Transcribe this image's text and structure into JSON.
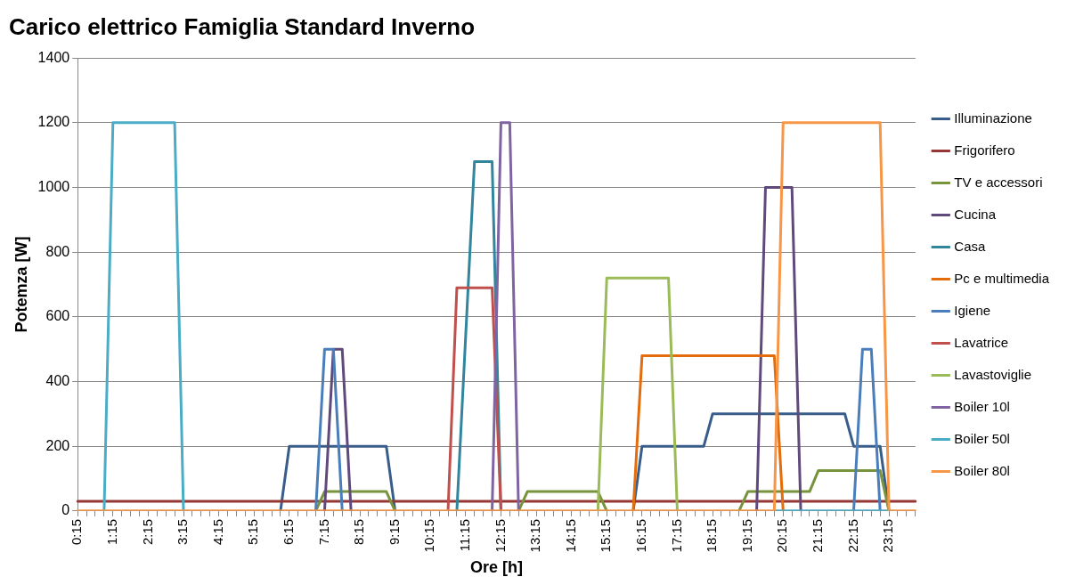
{
  "chart_data": {
    "type": "line",
    "title": "Carico elettrico Famiglia Standard Inverno",
    "xlabel": "Ore [h]",
    "ylabel": "Potemza [W]",
    "categories": [
      "0:15",
      null,
      null,
      null,
      "1:15",
      null,
      null,
      null,
      "2:15",
      null,
      null,
      null,
      "3:15",
      null,
      null,
      null,
      "4:15",
      null,
      null,
      null,
      "5:15",
      null,
      null,
      null,
      "6:15",
      null,
      null,
      null,
      "7:15",
      null,
      null,
      null,
      "8:15",
      null,
      null,
      null,
      "9:15",
      null,
      null,
      null,
      "10:15",
      null,
      null,
      null,
      "11:15",
      null,
      null,
      null,
      "12:15",
      null,
      null,
      null,
      "13:15",
      null,
      null,
      null,
      "14:15",
      null,
      null,
      null,
      "15:15",
      null,
      null,
      null,
      "16:15",
      null,
      null,
      null,
      "17:15",
      null,
      null,
      null,
      "18:15",
      null,
      null,
      null,
      "19:15",
      null,
      null,
      null,
      "20:15",
      null,
      null,
      null,
      "21:15",
      null,
      null,
      null,
      "22:15",
      null,
      null,
      null,
      "23:15",
      null,
      null,
      null
    ],
    "series": [
      {
        "name": "Illuminazione",
        "color": "#385d8a",
        "values": [
          null,
          null,
          null,
          null,
          null,
          null,
          null,
          null,
          null,
          null,
          null,
          null,
          null,
          null,
          null,
          null,
          null,
          null,
          null,
          null,
          null,
          null,
          null,
          0,
          200,
          200,
          200,
          200,
          200,
          200,
          200,
          200,
          200,
          200,
          200,
          200,
          0,
          null,
          null,
          null,
          null,
          null,
          null,
          null,
          null,
          null,
          null,
          null,
          null,
          null,
          null,
          null,
          null,
          null,
          null,
          null,
          null,
          null,
          null,
          null,
          null,
          null,
          null,
          0,
          200,
          200,
          200,
          200,
          200,
          200,
          200,
          200,
          300,
          300,
          300,
          300,
          300,
          300,
          300,
          300,
          300,
          300,
          300,
          300,
          300,
          300,
          300,
          300,
          200,
          200,
          200,
          200,
          0,
          null,
          null,
          null
        ]
      },
      {
        "name": "Frigorifero",
        "color": "#953735",
        "values": [
          30,
          30,
          30,
          30,
          30,
          30,
          30,
          30,
          30,
          30,
          30,
          30,
          30,
          30,
          30,
          30,
          30,
          30,
          30,
          30,
          30,
          30,
          30,
          30,
          30,
          30,
          30,
          30,
          30,
          30,
          30,
          30,
          30,
          30,
          30,
          30,
          30,
          30,
          30,
          30,
          30,
          30,
          30,
          30,
          30,
          30,
          30,
          30,
          30,
          30,
          30,
          30,
          30,
          30,
          30,
          30,
          30,
          30,
          30,
          30,
          30,
          30,
          30,
          30,
          30,
          30,
          30,
          30,
          30,
          30,
          30,
          30,
          30,
          30,
          30,
          30,
          30,
          30,
          30,
          30,
          30,
          30,
          30,
          30,
          30,
          30,
          30,
          30,
          30,
          30,
          30,
          30,
          30,
          30,
          30,
          30
        ]
      },
      {
        "name": "TV e accessori",
        "color": "#77933c",
        "values": [
          null,
          null,
          null,
          null,
          null,
          null,
          null,
          null,
          null,
          null,
          null,
          null,
          null,
          null,
          null,
          null,
          null,
          null,
          null,
          null,
          null,
          null,
          null,
          null,
          null,
          null,
          null,
          0,
          60,
          60,
          60,
          60,
          60,
          60,
          60,
          60,
          0,
          null,
          null,
          null,
          null,
          null,
          null,
          null,
          null,
          null,
          null,
          null,
          null,
          null,
          0,
          60,
          60,
          60,
          60,
          60,
          60,
          60,
          60,
          60,
          0,
          null,
          null,
          null,
          null,
          null,
          null,
          null,
          null,
          null,
          null,
          null,
          null,
          null,
          null,
          0,
          60,
          60,
          60,
          60,
          60,
          60,
          60,
          60,
          125,
          125,
          125,
          125,
          125,
          125,
          125,
          125,
          0,
          null,
          null,
          null
        ]
      },
      {
        "name": "Cucina",
        "color": "#604a7b",
        "values": [
          null,
          null,
          null,
          null,
          null,
          null,
          null,
          null,
          null,
          null,
          null,
          null,
          null,
          null,
          null,
          null,
          null,
          null,
          null,
          null,
          null,
          null,
          null,
          null,
          null,
          null,
          null,
          null,
          0,
          500,
          500,
          0,
          null,
          null,
          null,
          null,
          null,
          null,
          null,
          null,
          null,
          null,
          null,
          null,
          null,
          null,
          null,
          null,
          null,
          null,
          null,
          null,
          null,
          null,
          null,
          null,
          null,
          null,
          null,
          null,
          null,
          null,
          null,
          null,
          null,
          null,
          null,
          null,
          null,
          null,
          null,
          null,
          null,
          null,
          null,
          null,
          null,
          0,
          1000,
          1000,
          1000,
          1000,
          0,
          null,
          null,
          null,
          null,
          null,
          null,
          null,
          null,
          null,
          null,
          null,
          null,
          null
        ]
      },
      {
        "name": "Casa",
        "color": "#31859c",
        "values": [
          null,
          null,
          null,
          null,
          null,
          null,
          null,
          null,
          null,
          null,
          null,
          null,
          null,
          null,
          null,
          null,
          null,
          null,
          null,
          null,
          null,
          null,
          null,
          null,
          null,
          null,
          null,
          null,
          null,
          null,
          null,
          null,
          null,
          null,
          null,
          null,
          null,
          null,
          null,
          null,
          null,
          null,
          null,
          0,
          540,
          1080,
          1080,
          1080,
          0,
          null,
          null,
          null,
          null,
          null,
          null,
          null,
          null,
          null,
          null,
          null,
          null,
          null,
          null,
          null,
          null,
          null,
          null,
          null,
          null,
          null,
          null,
          null,
          null,
          null,
          null,
          null,
          null,
          null,
          null,
          null,
          null,
          null,
          null,
          null,
          null,
          null,
          null,
          null,
          null,
          null,
          null,
          null,
          null,
          null,
          null,
          null
        ]
      },
      {
        "name": "Pc e multimedia",
        "color": "#e46c0a",
        "values": [
          null,
          null,
          null,
          null,
          null,
          null,
          null,
          null,
          null,
          null,
          null,
          null,
          null,
          null,
          null,
          null,
          null,
          null,
          null,
          null,
          null,
          null,
          null,
          null,
          null,
          null,
          null,
          null,
          null,
          null,
          null,
          null,
          null,
          null,
          null,
          null,
          null,
          null,
          null,
          null,
          null,
          null,
          null,
          null,
          null,
          null,
          null,
          null,
          null,
          null,
          null,
          null,
          null,
          null,
          null,
          null,
          null,
          null,
          null,
          null,
          null,
          null,
          null,
          0,
          480,
          480,
          480,
          480,
          480,
          480,
          480,
          480,
          480,
          480,
          480,
          480,
          480,
          480,
          480,
          480,
          0,
          null,
          null,
          null,
          null,
          null,
          null,
          null,
          null,
          null,
          null,
          null,
          null,
          null,
          null,
          null
        ]
      },
      {
        "name": "Igiene",
        "color": "#4a7ebb",
        "values": [
          null,
          null,
          null,
          null,
          null,
          null,
          null,
          null,
          null,
          null,
          null,
          null,
          null,
          null,
          null,
          null,
          null,
          null,
          null,
          null,
          null,
          null,
          null,
          null,
          null,
          null,
          null,
          0,
          500,
          500,
          0,
          null,
          null,
          null,
          null,
          null,
          null,
          null,
          null,
          null,
          null,
          null,
          null,
          null,
          null,
          null,
          null,
          null,
          null,
          null,
          null,
          null,
          null,
          null,
          null,
          null,
          null,
          null,
          null,
          null,
          null,
          null,
          null,
          null,
          null,
          null,
          null,
          null,
          null,
          null,
          null,
          null,
          null,
          null,
          null,
          null,
          null,
          null,
          null,
          null,
          null,
          null,
          null,
          null,
          null,
          null,
          null,
          null,
          0,
          500,
          500,
          0,
          null,
          null,
          null,
          null
        ]
      },
      {
        "name": "Lavatrice",
        "color": "#c0504d",
        "values": [
          null,
          null,
          null,
          null,
          null,
          null,
          null,
          null,
          null,
          null,
          null,
          null,
          null,
          null,
          null,
          null,
          null,
          null,
          null,
          null,
          null,
          null,
          null,
          null,
          null,
          null,
          null,
          null,
          null,
          null,
          null,
          null,
          null,
          null,
          null,
          null,
          null,
          null,
          null,
          null,
          null,
          null,
          0,
          690,
          690,
          690,
          690,
          690,
          0,
          null,
          null,
          null,
          null,
          null,
          null,
          null,
          null,
          null,
          null,
          null,
          null,
          null,
          null,
          null,
          null,
          null,
          null,
          null,
          null,
          null,
          null,
          null,
          null,
          null,
          null,
          null,
          null,
          null,
          null,
          null,
          null,
          null,
          null,
          null,
          null,
          null,
          null,
          null,
          null,
          null,
          null,
          null,
          null,
          null,
          null,
          null
        ]
      },
      {
        "name": "Lavastoviglie",
        "color": "#9bbb59",
        "values": [
          null,
          null,
          null,
          null,
          null,
          null,
          null,
          null,
          null,
          null,
          null,
          null,
          null,
          null,
          null,
          null,
          null,
          null,
          null,
          null,
          null,
          null,
          null,
          null,
          null,
          null,
          null,
          null,
          null,
          null,
          null,
          null,
          null,
          null,
          null,
          null,
          null,
          null,
          null,
          null,
          null,
          null,
          null,
          null,
          null,
          null,
          null,
          null,
          null,
          null,
          null,
          null,
          null,
          null,
          null,
          null,
          null,
          null,
          null,
          0,
          720,
          720,
          720,
          720,
          720,
          720,
          720,
          720,
          0,
          null,
          null,
          null,
          null,
          null,
          null,
          null,
          null,
          null,
          null,
          null,
          null,
          null,
          null,
          null,
          null,
          null,
          null,
          null,
          null,
          null,
          null,
          null,
          null,
          null,
          null,
          null
        ]
      },
      {
        "name": "Boiler 10l",
        "color": "#8064a2",
        "values": [
          null,
          null,
          null,
          null,
          null,
          null,
          null,
          null,
          null,
          null,
          null,
          null,
          null,
          null,
          null,
          null,
          null,
          null,
          null,
          null,
          null,
          null,
          null,
          null,
          null,
          null,
          null,
          null,
          null,
          null,
          null,
          null,
          null,
          null,
          null,
          null,
          null,
          null,
          null,
          null,
          null,
          null,
          null,
          null,
          null,
          null,
          null,
          0,
          1200,
          1200,
          0,
          null,
          null,
          null,
          null,
          null,
          null,
          null,
          null,
          null,
          null,
          null,
          null,
          null,
          null,
          null,
          null,
          null,
          null,
          null,
          null,
          null,
          null,
          null,
          null,
          null,
          null,
          null,
          null,
          null,
          null,
          null,
          null,
          null,
          null,
          null,
          null,
          null,
          null,
          null,
          null,
          null,
          null,
          null,
          null,
          null
        ]
      },
      {
        "name": "Boiler 50l",
        "color": "#4bacc6",
        "values": [
          null,
          null,
          null,
          0,
          1200,
          1200,
          1200,
          1200,
          1200,
          1200,
          1200,
          1200,
          0,
          null,
          null,
          null,
          null,
          null,
          null,
          null,
          null,
          null,
          null,
          null,
          null,
          null,
          null,
          null,
          null,
          null,
          null,
          null,
          null,
          null,
          null,
          null,
          null,
          null,
          null,
          null,
          null,
          null,
          null,
          null,
          null,
          null,
          null,
          null,
          null,
          null,
          null,
          null,
          null,
          null,
          null,
          null,
          null,
          null,
          null,
          null,
          null,
          null,
          null,
          null,
          null,
          null,
          null,
          null,
          null,
          null,
          null,
          null,
          null,
          null,
          null,
          null,
          null,
          null,
          null,
          0,
          0,
          0,
          0,
          0,
          0,
          0,
          0,
          0,
          0,
          0,
          0,
          0,
          0,
          null,
          null,
          null
        ]
      },
      {
        "name": "Boiler 80l",
        "color": "#f79646",
        "values": [
          0,
          0,
          0,
          0,
          0,
          0,
          0,
          0,
          0,
          0,
          0,
          0,
          0,
          0,
          0,
          0,
          0,
          0,
          0,
          0,
          0,
          0,
          0,
          0,
          0,
          0,
          0,
          0,
          0,
          0,
          0,
          0,
          0,
          0,
          0,
          0,
          0,
          0,
          0,
          0,
          0,
          0,
          0,
          0,
          0,
          0,
          0,
          0,
          0,
          0,
          0,
          0,
          0,
          0,
          0,
          0,
          0,
          0,
          0,
          0,
          0,
          0,
          0,
          0,
          0,
          0,
          0,
          0,
          0,
          0,
          0,
          0,
          0,
          0,
          0,
          0,
          0,
          0,
          0,
          0,
          1200,
          1200,
          1200,
          1200,
          1200,
          1200,
          1200,
          1200,
          1200,
          1200,
          1200,
          1200,
          0,
          0,
          0,
          0
        ]
      }
    ],
    "ylim": [
      0,
      1400
    ],
    "yticks": [
      0,
      200,
      400,
      600,
      800,
      1000,
      1200,
      1400
    ],
    "grid": "y",
    "legend": "right",
    "marker": "none",
    "line_style": "solid"
  }
}
